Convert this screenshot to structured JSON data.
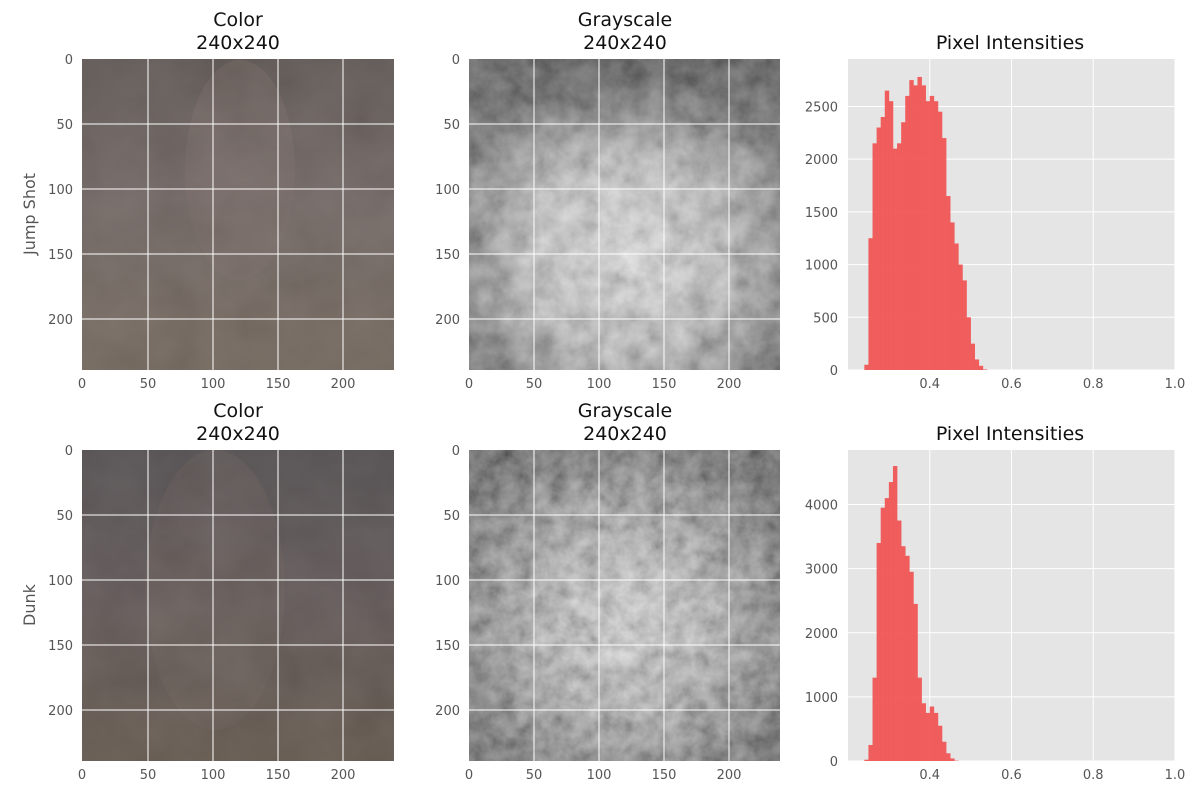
{
  "rows": [
    {
      "label": "Jump Shot",
      "color_panel": {
        "title_line1": "Color",
        "title_line2": "240x240"
      },
      "gray_panel": {
        "title_line1": "Grayscale",
        "title_line2": "240x240"
      },
      "hist_panel": {
        "title": "Pixel Intensities"
      }
    },
    {
      "label": "Dunk",
      "color_panel": {
        "title_line1": "Color",
        "title_line2": "240x240"
      },
      "gray_panel": {
        "title_line1": "Grayscale",
        "title_line2": "240x240"
      },
      "hist_panel": {
        "title": "Pixel Intensities"
      }
    }
  ],
  "image_axes": {
    "x_ticks": [
      "0",
      "50",
      "100",
      "150",
      "200"
    ],
    "y_ticks": [
      "0",
      "50",
      "100",
      "150",
      "200"
    ],
    "size": 240
  },
  "colors": {
    "hist_fill": "#f05555",
    "axes_bg": "#e5e5e5",
    "grid": "#ffffff",
    "tick_text": "#555555",
    "color_img_base": "#6a5f59",
    "color_img_base_dunk": "#5d5450"
  },
  "chart_data": [
    {
      "type": "bar",
      "title": "Pixel Intensities",
      "row": "Jump Shot",
      "xlim": [
        0.2,
        1.0
      ],
      "ylim": [
        0,
        2950
      ],
      "x_ticks": [
        "0.4",
        "0.6",
        "0.8",
        "1.0"
      ],
      "y_ticks": [
        "0",
        "500",
        "1000",
        "1500",
        "2000",
        "2500"
      ],
      "x": [
        0.24,
        0.25,
        0.26,
        0.27,
        0.28,
        0.29,
        0.3,
        0.31,
        0.32,
        0.33,
        0.34,
        0.35,
        0.36,
        0.37,
        0.38,
        0.39,
        0.4,
        0.41,
        0.42,
        0.43,
        0.44,
        0.45,
        0.46,
        0.47,
        0.48,
        0.49,
        0.5,
        0.51,
        0.52,
        0.53
      ],
      "values": [
        50,
        1250,
        2150,
        2300,
        2400,
        2650,
        2550,
        2100,
        2150,
        2350,
        2600,
        2750,
        2700,
        2780,
        2700,
        2550,
        2600,
        2550,
        2450,
        2200,
        1650,
        1400,
        1200,
        1000,
        850,
        500,
        250,
        100,
        40,
        5
      ]
    },
    {
      "type": "bar",
      "title": "Pixel Intensities",
      "row": "Dunk",
      "xlim": [
        0.2,
        1.0
      ],
      "ylim": [
        0,
        4850
      ],
      "x_ticks": [
        "0.4",
        "0.6",
        "0.8",
        "1.0"
      ],
      "y_ticks": [
        "0",
        "1000",
        "2000",
        "3000",
        "4000"
      ],
      "x": [
        0.24,
        0.25,
        0.26,
        0.27,
        0.28,
        0.29,
        0.3,
        0.31,
        0.32,
        0.33,
        0.34,
        0.35,
        0.36,
        0.37,
        0.38,
        0.39,
        0.4,
        0.41,
        0.42,
        0.43,
        0.44,
        0.45,
        0.46
      ],
      "values": [
        20,
        250,
        1300,
        3400,
        3950,
        4100,
        4350,
        4600,
        3750,
        3350,
        3200,
        2950,
        2450,
        1300,
        900,
        750,
        850,
        750,
        550,
        300,
        120,
        40,
        5
      ]
    }
  ]
}
